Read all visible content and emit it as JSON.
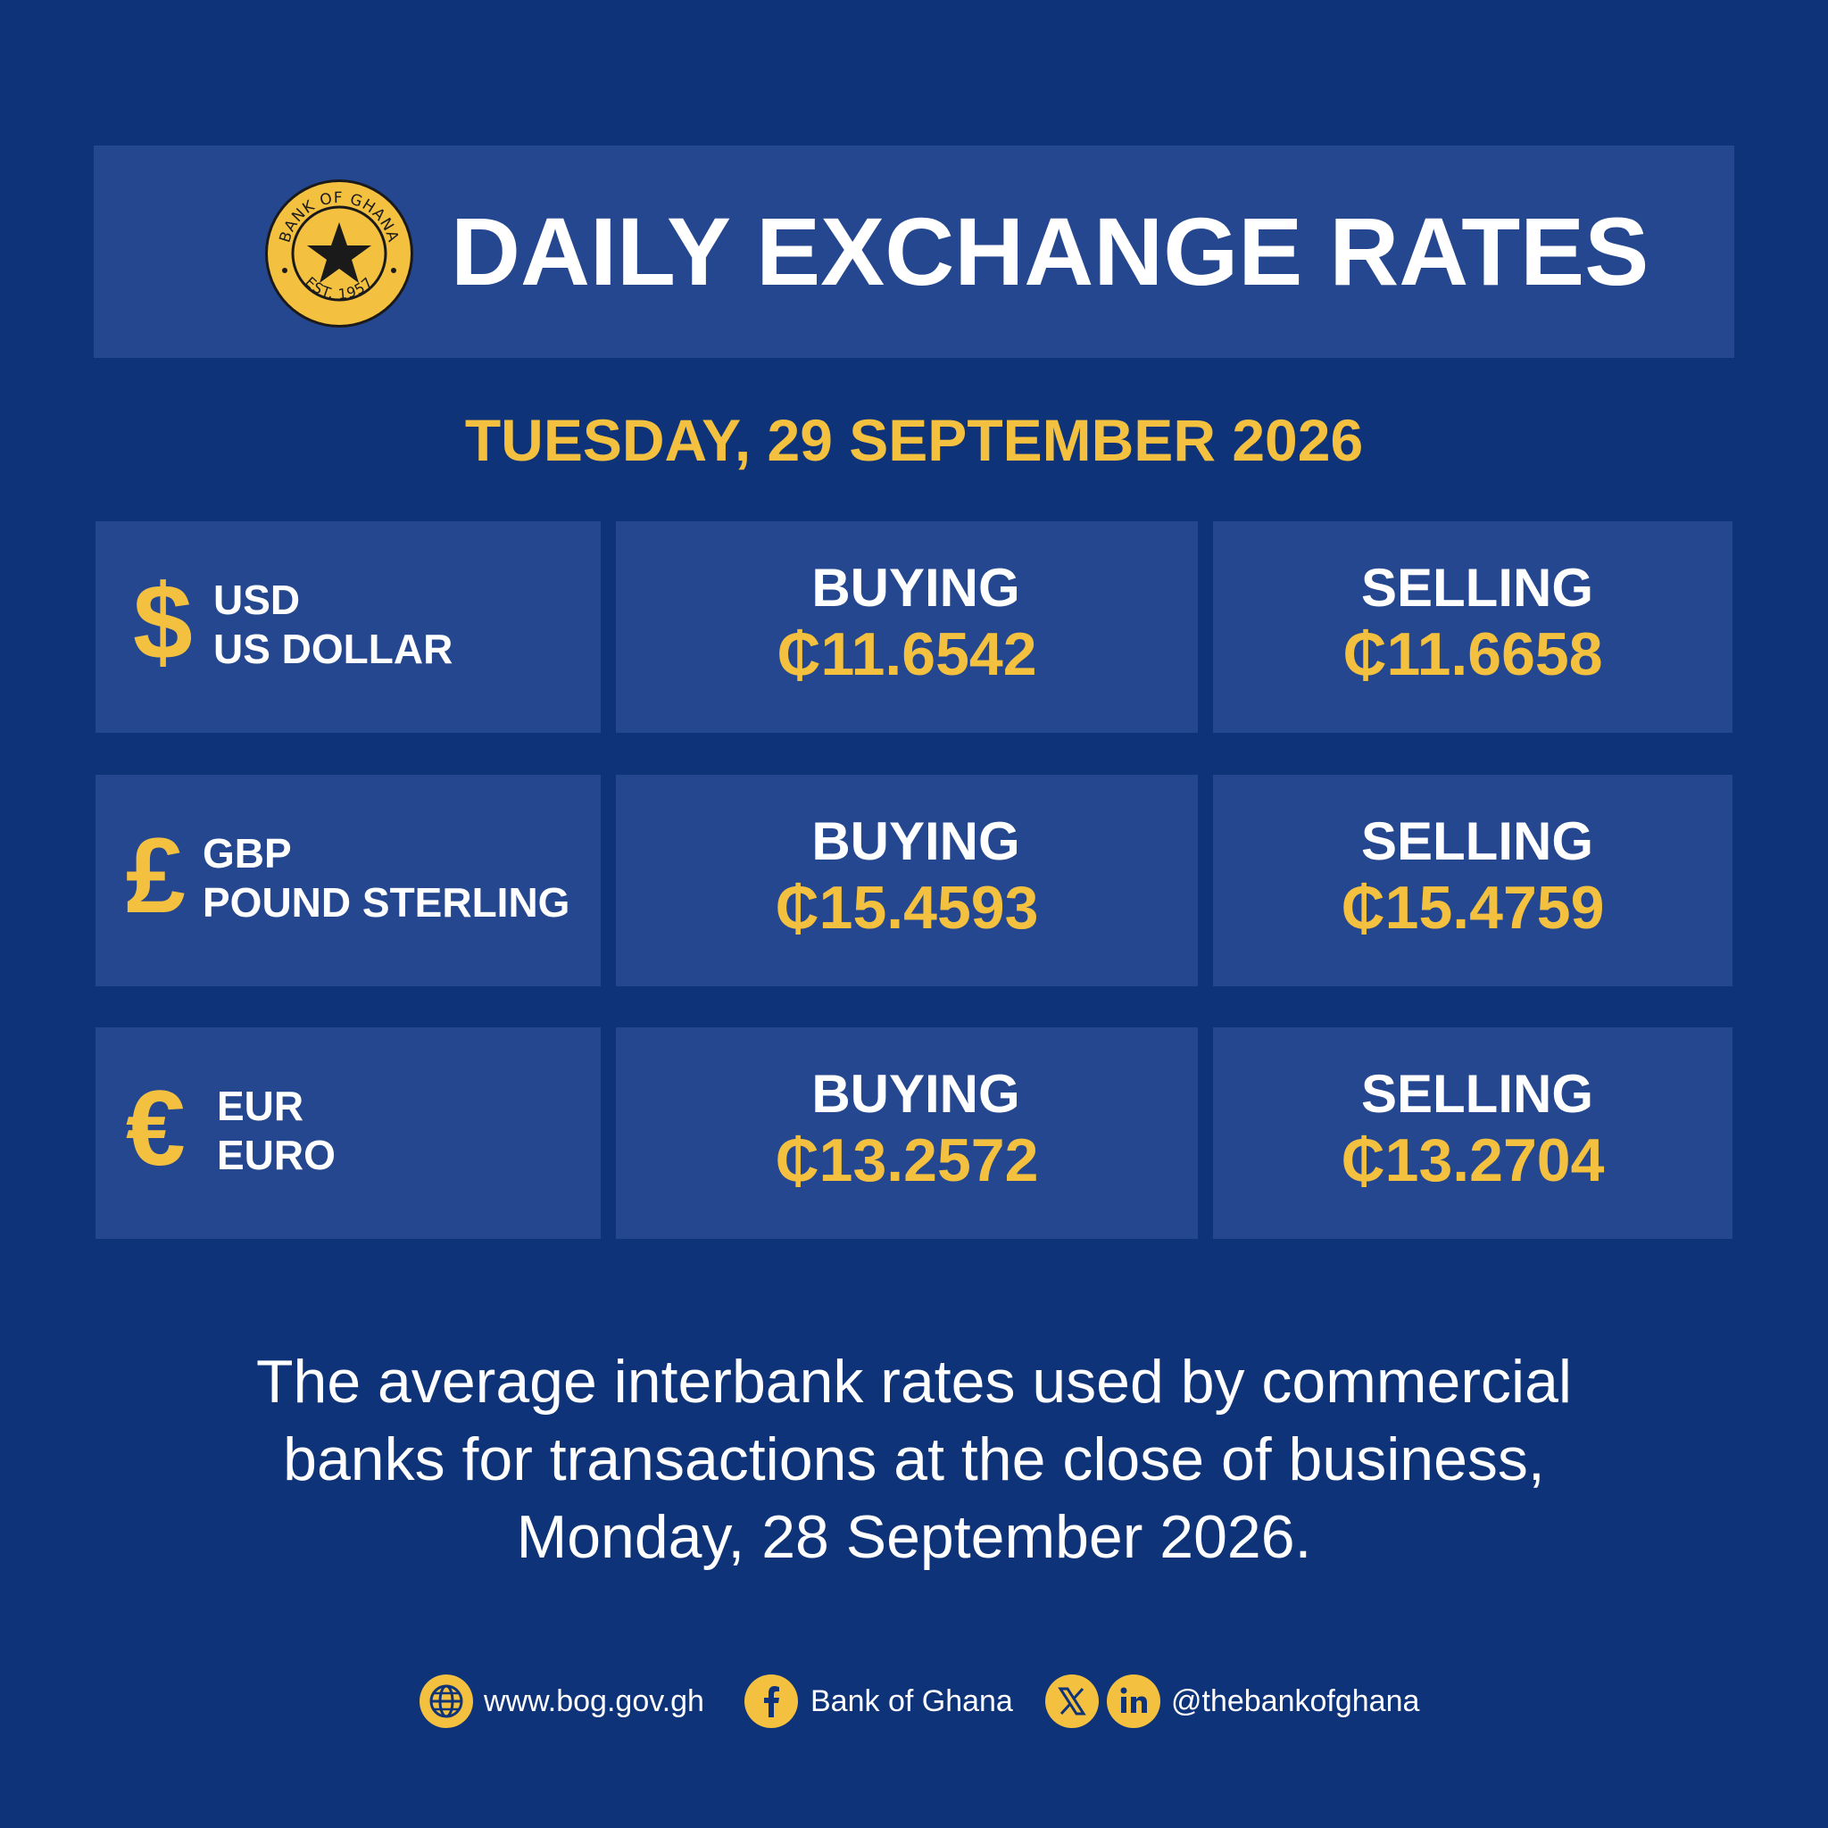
{
  "header": {
    "seal": {
      "top_text": "BANK OF GHANA",
      "bottom_text": "EST. 1957"
    },
    "title": "DAILY EXCHANGE RATES"
  },
  "date": "TUESDAY, 29 SEPTEMBER 2026",
  "rates": [
    {
      "symbol": "$",
      "code": "USD",
      "name": "US DOLLAR",
      "buying_label": "BUYING",
      "buying": "₵11.6542",
      "selling_label": "SELLING",
      "selling": "₵11.6658"
    },
    {
      "symbol": "£",
      "code": "GBP",
      "name": "POUND STERLING",
      "buying_label": "BUYING",
      "buying": "₵15.4593",
      "selling_label": "SELLING",
      "selling": "₵15.4759"
    },
    {
      "symbol": "€",
      "code": "EUR",
      "name": "EURO",
      "buying_label": "BUYING",
      "buying": "₵13.2572",
      "selling_label": "SELLING",
      "selling": "₵13.2704"
    }
  ],
  "note": {
    "line1": "The average interbank rates used by commercial",
    "line2": "banks for transactions at the close of business,",
    "line3": "Monday, 28 September 2026."
  },
  "footer": {
    "website_icon": "globe-icon",
    "website": "www.bog.gov.gh",
    "facebook_icon": "facebook-icon",
    "facebook": "Bank of Ghana",
    "x_icon": "x-icon",
    "linkedin_icon": "linkedin-icon",
    "handle": "@thebankofghana"
  },
  "colors": {
    "background": "#0e3378",
    "panel": "#25478f",
    "accent": "#f3c13f",
    "text": "#ffffff"
  }
}
